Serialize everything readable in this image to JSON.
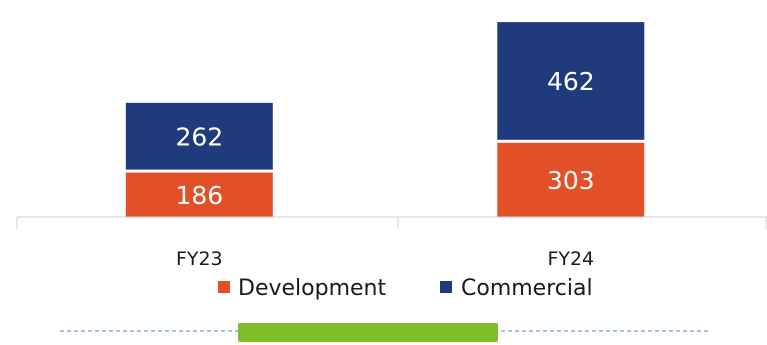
{
  "chart_data": {
    "type": "bar",
    "stacked": true,
    "categories": [
      "FY23",
      "FY24"
    ],
    "series": [
      {
        "name": "Development",
        "values": [
          186,
          303
        ],
        "color": "#e34f26"
      },
      {
        "name": "Commercial",
        "values": [
          262,
          462
        ],
        "color": "#1f3a7d"
      }
    ],
    "ylim": [
      0,
      800
    ],
    "grid": false,
    "legend_position": "bottom"
  },
  "decoration": {
    "dashed_line_color": "#4a86c8",
    "bar_accent_color": "#7fbe2a"
  }
}
